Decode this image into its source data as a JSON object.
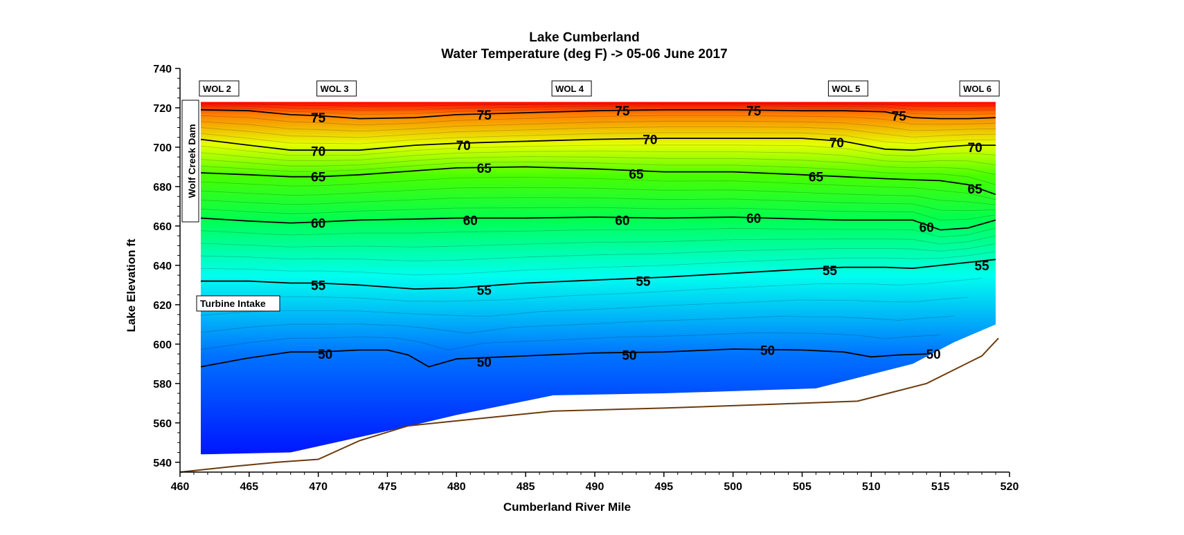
{
  "chart_data": {
    "type": "contour",
    "title": "Lake Cumberland",
    "subtitle": "Water Temperature (deg F)  ->  05-06 June 2017",
    "xlabel": "Cumberland River Mile",
    "ylabel": "Lake  Elevation  ft",
    "xlim": [
      460,
      520
    ],
    "ylim": [
      535,
      740
    ],
    "x_ticks": [
      460,
      465,
      470,
      475,
      480,
      485,
      490,
      495,
      500,
      505,
      510,
      515,
      520
    ],
    "y_ticks": [
      540,
      560,
      580,
      600,
      620,
      640,
      660,
      680,
      700,
      720,
      740
    ],
    "x_tick_labels": [
      "460",
      "465",
      "470",
      "475",
      "480",
      "485",
      "490",
      "495",
      "500",
      "505",
      "510",
      "515",
      "520"
    ],
    "y_tick_labels": [
      "540",
      "560",
      "580",
      "600",
      "620",
      "640",
      "660",
      "680",
      "700",
      "720",
      "740"
    ],
    "grid": false,
    "water_surface_elevation": 723,
    "stations": [
      {
        "label": "WOL 2",
        "mile": 461.5
      },
      {
        "label": "WOL 3",
        "mile": 470
      },
      {
        "label": "WOL 4",
        "mile": 487
      },
      {
        "label": "WOL 5",
        "mile": 507
      },
      {
        "label": "WOL 6",
        "mile": 516.5
      }
    ],
    "annotations": {
      "dam": "Wolf Creek Dam",
      "intake": "Turbine Intake"
    },
    "contour_lines": [
      {
        "level": 75,
        "x": [
          461.5,
          465,
          468,
          470,
          473,
          477,
          480,
          485,
          490,
          495,
          500,
          505,
          508,
          511,
          513,
          515,
          517,
          519
        ],
        "y": [
          719,
          718.5,
          716.5,
          716,
          714.5,
          715,
          716.5,
          717.5,
          718.5,
          719,
          719,
          718.5,
          718.5,
          718,
          715,
          714.5,
          714.5,
          715
        ]
      },
      {
        "level": 70,
        "x": [
          461.5,
          465,
          468,
          470,
          473,
          477,
          480,
          485,
          490,
          495,
          500,
          505,
          508,
          511,
          513,
          515,
          517,
          519
        ],
        "y": [
          704,
          701,
          698.5,
          698.5,
          698.5,
          701,
          702,
          703,
          704,
          704.5,
          704.5,
          704.5,
          703,
          699,
          698.5,
          700,
          701,
          701
        ]
      },
      {
        "level": 65,
        "x": [
          461.5,
          465,
          468,
          470,
          473,
          477,
          480,
          485,
          490,
          495,
          500,
          505,
          508,
          511,
          513,
          515,
          517,
          519
        ],
        "y": [
          687,
          686,
          685,
          685,
          686,
          688,
          689.5,
          690,
          689,
          687.5,
          687.5,
          686,
          685,
          684,
          683.5,
          683,
          681,
          676
        ]
      },
      {
        "level": 60,
        "x": [
          461.5,
          465,
          468,
          470,
          473,
          477,
          480,
          485,
          490,
          495,
          500,
          505,
          508,
          511,
          513,
          515,
          517,
          519
        ],
        "y": [
          664,
          662.5,
          661.5,
          662,
          663,
          663.5,
          664,
          664,
          664.5,
          664,
          664.5,
          663.5,
          663,
          663,
          663,
          658,
          659,
          663
        ]
      },
      {
        "level": 55,
        "x": [
          461.5,
          465,
          468,
          470,
          473,
          477,
          480,
          485,
          490,
          495,
          500,
          505,
          508,
          511,
          513,
          515,
          517,
          519
        ],
        "y": [
          632,
          632,
          631,
          631,
          630,
          628,
          628.5,
          631,
          632.5,
          634,
          636,
          638,
          639,
          639,
          638.5,
          640,
          641.5,
          643
        ]
      },
      {
        "level": 50,
        "x": [
          461.5,
          465,
          468,
          470,
          473,
          475,
          476.5,
          478,
          480,
          485,
          490,
          495,
          500,
          505,
          508,
          510,
          512,
          514
        ],
        "y": [
          588.5,
          593,
          596,
          596,
          597,
          597,
          594.5,
          588.5,
          592.5,
          594,
          595.5,
          596,
          597.5,
          597,
          596,
          593.5,
          594.5,
          595
        ]
      }
    ],
    "contour_labels": [
      {
        "text": "75",
        "x": 470,
        "y": 715
      },
      {
        "text": "75",
        "x": 482,
        "y": 716.5
      },
      {
        "text": "75",
        "x": 492,
        "y": 718.5
      },
      {
        "text": "75",
        "x": 501.5,
        "y": 718.5
      },
      {
        "text": "75",
        "x": 512,
        "y": 716
      },
      {
        "text": "70",
        "x": 470,
        "y": 698
      },
      {
        "text": "70",
        "x": 480.5,
        "y": 701
      },
      {
        "text": "70",
        "x": 494,
        "y": 704
      },
      {
        "text": "70",
        "x": 507.5,
        "y": 702.5
      },
      {
        "text": "70",
        "x": 517.5,
        "y": 700
      },
      {
        "text": "65",
        "x": 470,
        "y": 685
      },
      {
        "text": "65",
        "x": 482,
        "y": 689.5
      },
      {
        "text": "65",
        "x": 493,
        "y": 686.5
      },
      {
        "text": "65",
        "x": 506,
        "y": 685
      },
      {
        "text": "65",
        "x": 517.5,
        "y": 679
      },
      {
        "text": "60",
        "x": 470,
        "y": 661.5
      },
      {
        "text": "60",
        "x": 481,
        "y": 663
      },
      {
        "text": "60",
        "x": 492,
        "y": 663
      },
      {
        "text": "60",
        "x": 501.5,
        "y": 664
      },
      {
        "text": "60",
        "x": 514,
        "y": 659.5
      },
      {
        "text": "55",
        "x": 470,
        "y": 630
      },
      {
        "text": "55",
        "x": 482,
        "y": 627.5
      },
      {
        "text": "55",
        "x": 493.5,
        "y": 632
      },
      {
        "text": "55",
        "x": 507,
        "y": 637.5
      },
      {
        "text": "55",
        "x": 518,
        "y": 640
      },
      {
        "text": "50",
        "x": 470.5,
        "y": 595
      },
      {
        "text": "50",
        "x": 482,
        "y": 591
      },
      {
        "text": "50",
        "x": 492.5,
        "y": 594.5
      },
      {
        "text": "50",
        "x": 502.5,
        "y": 597
      },
      {
        "text": "50",
        "x": 514.5,
        "y": 595
      }
    ],
    "data_region": {
      "top_elevation": 723,
      "left_edge": {
        "x": [
          461.5,
          461.5
        ],
        "y": [
          723,
          544
        ]
      },
      "bottom_edge": {
        "x": [
          461.5,
          468,
          477,
          480,
          487,
          495,
          506,
          513,
          516,
          519
        ],
        "y": [
          544,
          545,
          559,
          564,
          574,
          575,
          577.5,
          590,
          601,
          610
        ]
      }
    },
    "lake_bed": {
      "x": [
        460,
        464,
        467,
        470,
        473,
        476.5,
        480,
        487,
        495,
        503,
        509,
        514,
        518,
        519.2
      ],
      "y": [
        535,
        538,
        540,
        541.5,
        551,
        558.5,
        561,
        566,
        567.5,
        569.5,
        571,
        580,
        594,
        603
      ]
    },
    "temperature_range": [
      47,
      79
    ],
    "colors": {
      "contour_line": "#000000",
      "lake_bed": "#6a3a0c",
      "scale_low": "#0a14f0",
      "scale_high": "#ff0000"
    }
  }
}
